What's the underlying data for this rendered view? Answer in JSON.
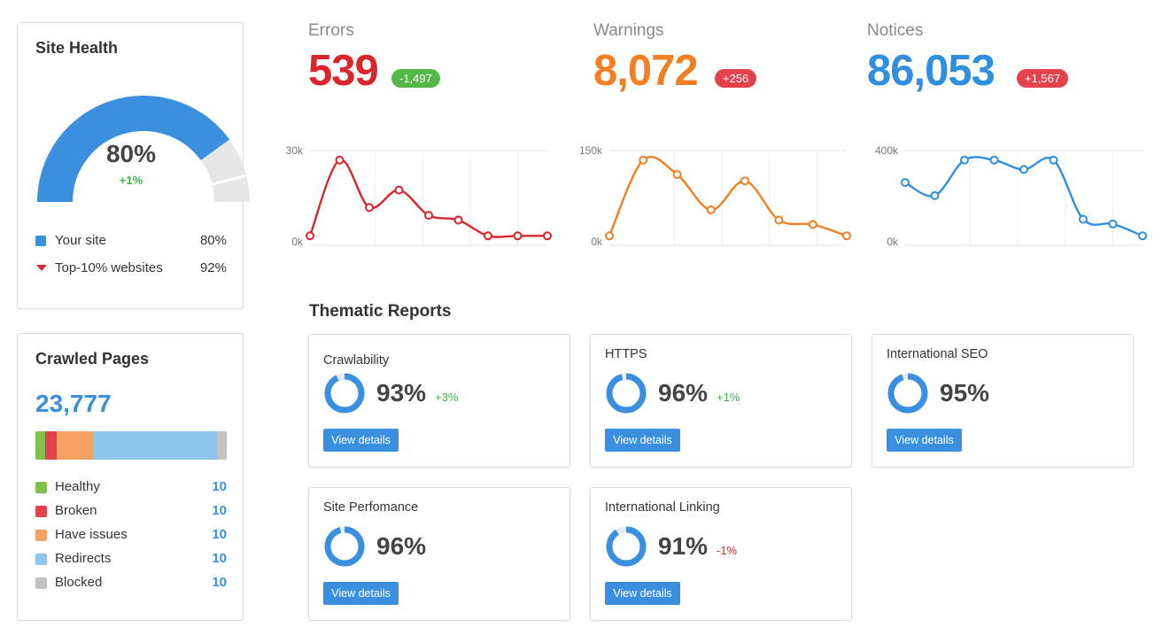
{
  "site_health": {
    "title": "Site Health",
    "percent": "80%",
    "delta": "+1%",
    "legend": [
      {
        "label": "Your site",
        "value": "80%",
        "marker": "square",
        "color": "#3a8fde"
      },
      {
        "label": "Top-10% websites",
        "value": "92%",
        "marker": "triangle",
        "color": "#d9262c"
      }
    ]
  },
  "metrics": [
    {
      "name": "Errors",
      "value": "539",
      "badge": "-1,497",
      "color": "#d9262c",
      "badge_color": "#54b848",
      "chart": {
        "y_max_label": "30k",
        "y_min_label": "0k",
        "y_max": 30000,
        "values": [
          3000,
          27000,
          12000,
          17500,
          9500,
          8000,
          3000,
          3000,
          3000
        ]
      }
    },
    {
      "name": "Warnings",
      "value": "8,072",
      "badge": "+256",
      "color": "#f27f22",
      "badge_color": "#e3414b",
      "chart": {
        "y_max_label": "150k",
        "y_min_label": "0k",
        "y_max": 150000,
        "values": [
          15000,
          135000,
          112000,
          56000,
          102000,
          40000,
          33000,
          15000
        ]
      }
    },
    {
      "name": "Notices",
      "value": "86,053",
      "badge": "+1,567",
      "color": "#2f8fde",
      "badge_color": "#e3414b",
      "chart": {
        "y_max_label": "400k",
        "y_min_label": "0k",
        "y_max": 400000,
        "values": [
          265000,
          210000,
          360000,
          360000,
          320000,
          360000,
          110000,
          90000,
          40000
        ]
      }
    }
  ],
  "crawled_pages": {
    "title": "Crawled Pages",
    "count": "23,777",
    "bar_fractions": [
      0.05,
      0.06,
      0.19,
      0.65,
      0.05
    ],
    "items": [
      {
        "label": "Healthy",
        "value": "10",
        "color": "#7dc24b"
      },
      {
        "label": "Broken",
        "value": "10",
        "color": "#e3414b"
      },
      {
        "label": "Have issues",
        "value": "10",
        "color": "#f5a164"
      },
      {
        "label": "Redirects",
        "value": "10",
        "color": "#8ec6ef"
      },
      {
        "label": "Blocked",
        "value": "10",
        "color": "#c2c2c2"
      }
    ]
  },
  "thematic": {
    "title": "Thematic Reports",
    "reports": [
      {
        "name": "Crawlability",
        "percent": "93%",
        "fraction": 0.93,
        "delta": "+3%",
        "delta_color": "#3bb34a",
        "button": "View details"
      },
      {
        "name": "HTTPS",
        "percent": "96%",
        "fraction": 0.96,
        "delta": "+1%",
        "delta_color": "#3bb34a",
        "button": "View details"
      },
      {
        "name": "International SEO",
        "percent": "95%",
        "fraction": 0.95,
        "delta": "",
        "delta_color": "",
        "button": "View details"
      },
      {
        "name": "Site Perfomance",
        "percent": "96%",
        "fraction": 0.96,
        "delta": "",
        "delta_color": "",
        "button": "View details"
      },
      {
        "name": "International Linking",
        "percent": "91%",
        "fraction": 0.91,
        "delta": "-1%",
        "delta_color": "#d9262c",
        "button": "View details"
      }
    ]
  }
}
